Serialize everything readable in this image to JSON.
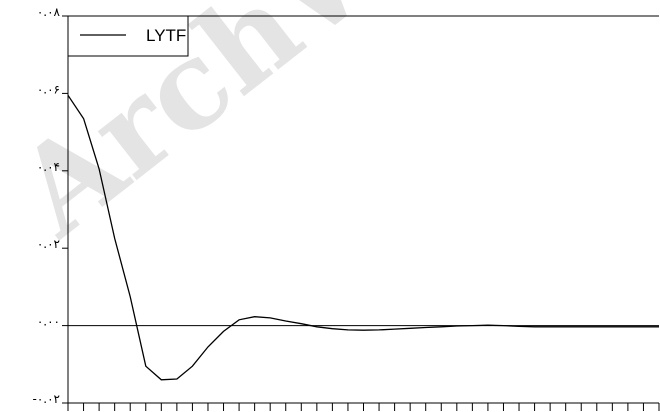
{
  "chart_data": {
    "type": "line",
    "title": "",
    "xlabel": "",
    "ylabel": "",
    "ylim": [
      -0.02,
      0.08
    ],
    "xlim": [
      0,
      38
    ],
    "yticks": [
      {
        "value": 0.08,
        "label": "۰.۰۸"
      },
      {
        "value": 0.06,
        "label": "۰.۰۶"
      },
      {
        "value": 0.04,
        "label": "۰.۰۴"
      },
      {
        "value": 0.02,
        "label": "۰.۰۲"
      },
      {
        "value": 0.0,
        "label": "۰.۰۰"
      },
      {
        "value": -0.02,
        "label": "-۰.۰۲"
      }
    ],
    "x_minor_ticks": 38,
    "zero_line": true,
    "legend": {
      "position": "top-left",
      "entries": [
        "LYTF"
      ]
    },
    "series": [
      {
        "name": "LYTF",
        "color": "#000000",
        "x": [
          0,
          1,
          2,
          3,
          4,
          5,
          6,
          7,
          8,
          9,
          10,
          11,
          12,
          13,
          14,
          15,
          16,
          17,
          18,
          19,
          20,
          21,
          22,
          23,
          24,
          25,
          26,
          27,
          28,
          29,
          30,
          31,
          32,
          33,
          34,
          35,
          36,
          37,
          38
        ],
        "values": [
          0.0595,
          0.0535,
          0.0405,
          0.0225,
          0.0075,
          -0.0105,
          -0.014,
          -0.0138,
          -0.0105,
          -0.0055,
          -0.0015,
          0.0015,
          0.0023,
          0.002,
          0.0012,
          0.0005,
          -0.0003,
          -0.0008,
          -0.0011,
          -0.0012,
          -0.0011,
          -0.0009,
          -0.0007,
          -0.0005,
          -0.0003,
          -0.0001,
          0.0,
          0.0001,
          0.0,
          -0.0002,
          -0.0003,
          -0.0003,
          -0.0003,
          -0.0003,
          -0.0003,
          -0.0003,
          -0.0003,
          -0.0003,
          -0.0003
        ]
      }
    ]
  },
  "watermark": "ArchW"
}
